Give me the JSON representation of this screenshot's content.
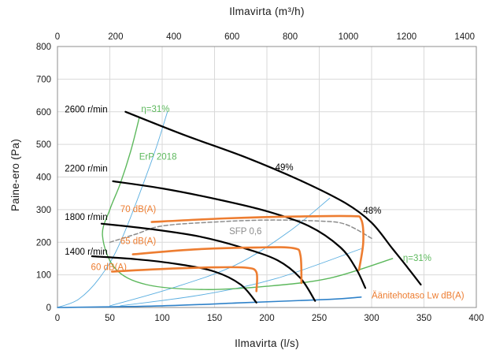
{
  "chart_data": {
    "type": "line",
    "title": "",
    "xlabel": "Ilmavirta (l/s)",
    "ylabel": "Paine-ero (Pa)",
    "x2label": "Ilmavirta (m³/h)",
    "xlim": [
      0,
      400
    ],
    "ylim": [
      0,
      800
    ],
    "x2lim": [
      0,
      1440
    ],
    "xticks": [
      0,
      50,
      100,
      150,
      200,
      250,
      300,
      350,
      400
    ],
    "yticks": [
      0,
      100,
      200,
      300,
      400,
      500,
      600,
      700,
      800
    ],
    "x2ticks": [
      0,
      200,
      400,
      600,
      800,
      1000,
      1200,
      1400
    ],
    "grid": true,
    "colors": {
      "fan": "#000000",
      "efficiency": "#5cb85c",
      "system": "#5aaee0",
      "sound": "#ed7d31",
      "sfp": "#8c8c8c"
    },
    "series": [
      {
        "name": "2600 r/min",
        "kind": "fan",
        "points": [
          [
            65,
            600
          ],
          [
            120,
            530
          ],
          [
            180,
            460
          ],
          [
            235,
            385
          ],
          [
            275,
            320
          ],
          [
            300,
            260
          ],
          [
            320,
            180
          ],
          [
            335,
            120
          ],
          [
            347,
            70
          ]
        ]
      },
      {
        "name": "2200 r/min",
        "kind": "fan",
        "points": [
          [
            53,
            387
          ],
          [
            100,
            365
          ],
          [
            155,
            330
          ],
          [
            200,
            295
          ],
          [
            240,
            250
          ],
          [
            270,
            185
          ],
          [
            285,
            120
          ],
          [
            294,
            60
          ]
        ]
      },
      {
        "name": "1800 r/min",
        "kind": "fan",
        "points": [
          [
            42,
            257
          ],
          [
            90,
            240
          ],
          [
            135,
            218
          ],
          [
            175,
            185
          ],
          [
            210,
            145
          ],
          [
            232,
            90
          ],
          [
            246,
            20
          ]
        ]
      },
      {
        "name": "1400 r/min",
        "kind": "fan",
        "points": [
          [
            33,
            157
          ],
          [
            75,
            148
          ],
          [
            115,
            133
          ],
          [
            150,
            110
          ],
          [
            175,
            70
          ],
          [
            190,
            15
          ]
        ]
      },
      {
        "name": "η=31%",
        "kind": "efficiency",
        "points": [
          [
            78,
            580
          ],
          [
            70,
            480
          ],
          [
            60,
            380
          ],
          [
            50,
            300
          ],
          [
            43,
            220
          ],
          [
            55,
            120
          ],
          [
            85,
            70
          ],
          [
            140,
            55
          ],
          [
            200,
            65
          ],
          [
            260,
            90
          ],
          [
            320,
            150
          ]
        ]
      },
      {
        "name": "",
        "kind": "system",
        "points": [
          [
            0,
            0
          ],
          [
            20,
            25
          ],
          [
            40,
            90
          ],
          [
            60,
            200
          ],
          [
            90,
            450
          ],
          [
            105,
            600
          ]
        ]
      },
      {
        "name": "",
        "kind": "system",
        "points": [
          [
            50,
            5
          ],
          [
            110,
            60
          ],
          [
            170,
            130
          ],
          [
            220,
            230
          ],
          [
            260,
            335
          ]
        ]
      },
      {
        "name": "",
        "kind": "system",
        "points": [
          [
            60,
            5
          ],
          [
            140,
            40
          ],
          [
            210,
            90
          ],
          [
            290,
            180
          ]
        ]
      },
      {
        "name": "Äänitehotaso Lw dB(A)",
        "kind": "system-main",
        "points": [
          [
            0,
            0
          ],
          [
            100,
            5
          ],
          [
            180,
            15
          ],
          [
            260,
            25
          ],
          [
            290,
            32
          ]
        ]
      },
      {
        "name": "70 dB(A)",
        "kind": "sound",
        "points": [
          [
            90,
            262
          ],
          [
            160,
            273
          ],
          [
            230,
            279
          ],
          [
            280,
            280
          ],
          [
            290,
            270
          ],
          [
            292,
            200
          ],
          [
            288,
            115
          ]
        ]
      },
      {
        "name": "65 dB(A)",
        "kind": "sound",
        "points": [
          [
            72,
            163
          ],
          [
            130,
            178
          ],
          [
            190,
            184
          ],
          [
            225,
            182
          ],
          [
            232,
            160
          ],
          [
            233,
            75
          ]
        ]
      },
      {
        "name": "60 dB(A)",
        "kind": "sound",
        "points": [
          [
            52,
            110
          ],
          [
            100,
            118
          ],
          [
            150,
            123
          ],
          [
            180,
            122
          ],
          [
            190,
            108
          ],
          [
            190,
            50
          ]
        ]
      },
      {
        "name": "SFP 0,6",
        "kind": "sfp",
        "points": [
          [
            50,
            200
          ],
          [
            75,
            225
          ],
          [
            100,
            250
          ],
          [
            150,
            262
          ],
          [
            200,
            268
          ],
          [
            250,
            265
          ],
          [
            275,
            255
          ],
          [
            300,
            212
          ]
        ]
      }
    ],
    "annotations": [
      {
        "text": "2600 r/min",
        "x": 7,
        "y": 598,
        "color": "#000000"
      },
      {
        "text": "η=31%",
        "x": 80,
        "y": 600,
        "color": "#5cb85c"
      },
      {
        "text": "ErP 2018",
        "x": 78,
        "y": 453,
        "color": "#5cb85c"
      },
      {
        "text": "2200 r/min",
        "x": 7,
        "y": 417,
        "color": "#000000"
      },
      {
        "text": "49%",
        "x": 208,
        "y": 420,
        "color": "#000000"
      },
      {
        "text": "1800 r/min",
        "x": 7,
        "y": 268,
        "color": "#000000"
      },
      {
        "text": "70 dB(A)",
        "x": 60,
        "y": 292,
        "color": "#ed7d31"
      },
      {
        "text": "48%",
        "x": 292,
        "y": 288,
        "color": "#000000"
      },
      {
        "text": "SFP 0,6",
        "x": 164,
        "y": 225,
        "color": "#8c8c8c"
      },
      {
        "text": "65 dB(A)",
        "x": 60,
        "y": 195,
        "color": "#ed7d31"
      },
      {
        "text": "1400 r/min",
        "x": 7,
        "y": 162,
        "color": "#000000"
      },
      {
        "text": "η=31%",
        "x": 330,
        "y": 143,
        "color": "#5cb85c"
      },
      {
        "text": "60 dB(A)",
        "x": 32,
        "y": 115,
        "color": "#ed7d31"
      },
      {
        "text": "Äänitehotaso Lw dB(A)",
        "x": 300,
        "y": 28,
        "color": "#ed7d31"
      }
    ]
  }
}
